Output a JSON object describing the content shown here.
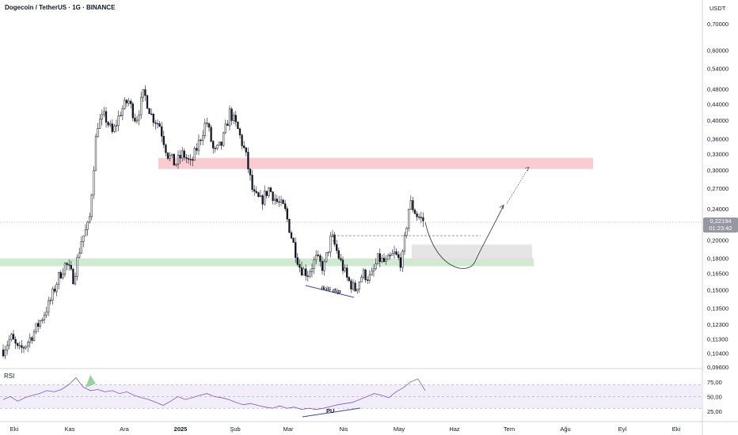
{
  "header": {
    "title": "Dogecoin / TetherUS · 1G · BINANCE"
  },
  "axis": {
    "unit": "USDT"
  },
  "last_price": {
    "value": "0,22194",
    "countdown": "01:23:42"
  },
  "rsi": {
    "label": "RSI",
    "levels": [
      "75,00",
      "50,00",
      "25,00"
    ]
  },
  "annotations": {
    "double_bottom": "ikili dip",
    "divergence": "PU"
  },
  "colors": {
    "resistance_zone": "#f7c3c8",
    "support_zone": "#c8e6c9",
    "target_zone": "#e0e0e0",
    "rsi_line": "#7e57c2",
    "rsi_band": "#ede7f6",
    "candle": "#131722",
    "arrow": "#555555"
  },
  "chart_data": {
    "type": "candlestick",
    "x_labels": [
      "Eki",
      "Kas",
      "Ara",
      "2025",
      "Şub",
      "Mar",
      "Nis",
      "May",
      "Haz",
      "Tem",
      "Ağu",
      "Eyl",
      "Eki"
    ],
    "y_ticks": [
      "0,70000",
      "0,60000",
      "0,54000",
      "0,48000",
      "0,44000",
      "0,40000",
      "0,36000",
      "0,33000",
      "0,30000",
      "0,27000",
      "0,24000",
      "0,20000",
      "0,18000",
      "0,16500",
      "0,15000",
      "0,13500",
      "0,12300",
      "0,11300",
      "0,10400",
      "0,09600"
    ],
    "close_path": [
      {
        "date": "Eki",
        "price": 0.106
      },
      {
        "date": "Eki",
        "price": 0.114
      },
      {
        "date": "Eki",
        "price": 0.105
      },
      {
        "date": "Eki",
        "price": 0.11
      },
      {
        "date": "Eki",
        "price": 0.118
      },
      {
        "date": "Eki",
        "price": 0.128
      },
      {
        "date": "Eki",
        "price": 0.14
      },
      {
        "date": "Kas",
        "price": 0.16
      },
      {
        "date": "Kas",
        "price": 0.175
      },
      {
        "date": "Kas",
        "price": 0.16
      },
      {
        "date": "Kas",
        "price": 0.2
      },
      {
        "date": "Kas",
        "price": 0.22
      },
      {
        "date": "Kas",
        "price": 0.39
      },
      {
        "date": "Kas",
        "price": 0.41
      },
      {
        "date": "Kas",
        "price": 0.37
      },
      {
        "date": "Ara",
        "price": 0.42
      },
      {
        "date": "Ara",
        "price": 0.45
      },
      {
        "date": "Ara",
        "price": 0.4
      },
      {
        "date": "Ara",
        "price": 0.47
      },
      {
        "date": "Ara",
        "price": 0.41
      },
      {
        "date": "Ara",
        "price": 0.39
      },
      {
        "date": "Ara",
        "price": 0.33
      },
      {
        "date": "2025",
        "price": 0.31
      },
      {
        "date": "2025",
        "price": 0.33
      },
      {
        "date": "2025",
        "price": 0.31
      },
      {
        "date": "2025",
        "price": 0.35
      },
      {
        "date": "2025",
        "price": 0.4
      },
      {
        "date": "2025",
        "price": 0.33
      },
      {
        "date": "2025",
        "price": 0.35
      },
      {
        "date": "2025",
        "price": 0.42
      },
      {
        "date": "2025",
        "price": 0.38
      },
      {
        "date": "Şub",
        "price": 0.33
      },
      {
        "date": "Şub",
        "price": 0.26
      },
      {
        "date": "Şub",
        "price": 0.25
      },
      {
        "date": "Şub",
        "price": 0.27
      },
      {
        "date": "Şub",
        "price": 0.25
      },
      {
        "date": "Mar",
        "price": 0.24
      },
      {
        "date": "Mar",
        "price": 0.2
      },
      {
        "date": "Mar",
        "price": 0.17
      },
      {
        "date": "Mar",
        "price": 0.165
      },
      {
        "date": "Mar",
        "price": 0.18
      },
      {
        "date": "Mar",
        "price": 0.17
      },
      {
        "date": "Mar",
        "price": 0.205
      },
      {
        "date": "Mar",
        "price": 0.18
      },
      {
        "date": "Nis",
        "price": 0.16
      },
      {
        "date": "Nis",
        "price": 0.15
      },
      {
        "date": "Nis",
        "price": 0.165
      },
      {
        "date": "Nis",
        "price": 0.16
      },
      {
        "date": "Nis",
        "price": 0.18
      },
      {
        "date": "Nis",
        "price": 0.175
      },
      {
        "date": "May",
        "price": 0.185
      },
      {
        "date": "May",
        "price": 0.175
      },
      {
        "date": "May",
        "price": 0.25
      },
      {
        "date": "May",
        "price": 0.23
      },
      {
        "date": "May",
        "price": 0.222
      }
    ],
    "zones": [
      {
        "name": "resistance",
        "from": 0.302,
        "to": 0.322
      },
      {
        "name": "support",
        "from": 0.172,
        "to": 0.18
      },
      {
        "name": "target",
        "from": 0.178,
        "to": 0.195
      }
    ],
    "projection": [
      {
        "date": "May",
        "price": 0.222
      },
      {
        "date": "Haz",
        "price": 0.172
      },
      {
        "date": "Haz",
        "price": 0.245
      },
      {
        "date": "Tem",
        "price": 0.305
      }
    ],
    "rsi_series": [
      45,
      50,
      42,
      48,
      52,
      55,
      60,
      58,
      62,
      70,
      82,
      66,
      60,
      62,
      58,
      60,
      55,
      58,
      52,
      48,
      45,
      40,
      35,
      42,
      50,
      45,
      48,
      52,
      55,
      50,
      48,
      45,
      40,
      36,
      38,
      35,
      32,
      30,
      34,
      30,
      32,
      28,
      30,
      28,
      30,
      33,
      36,
      38,
      40,
      45,
      50,
      55,
      52,
      48,
      58,
      65,
      75,
      80,
      60
    ]
  }
}
